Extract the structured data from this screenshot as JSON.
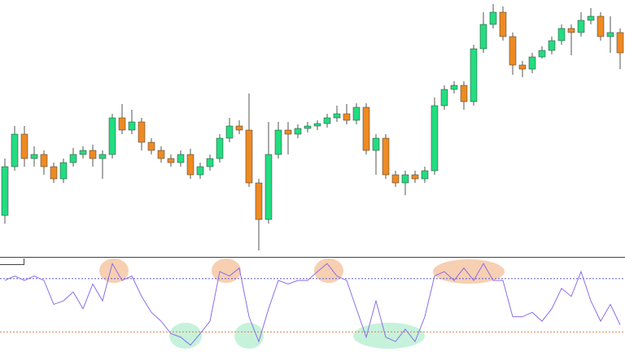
{
  "chart_data": [
    {
      "type": "candlestick",
      "ylim": [
        0,
        315
      ],
      "up_color": "#22dd80",
      "down_color": "#ee8a22",
      "wick_color": "#555555",
      "open": [
        50,
        110,
        150,
        120,
        125,
        110,
        95,
        115,
        125,
        130,
        120,
        125,
        170,
        155,
        165,
        140,
        130,
        120,
        115,
        125,
        100,
        110,
        120,
        145,
        160,
        155,
        90,
        45,
        125,
        155,
        150,
        157,
        160,
        163,
        170,
        175,
        167,
        183,
        130,
        145,
        100,
        90,
        100,
        95,
        105,
        185,
        205,
        210,
        190,
        255,
        285,
        300,
        270,
        235,
        230,
        245,
        253,
        265,
        280,
        275,
        290,
        295,
        270,
        275
      ],
      "high": [
        120,
        160,
        160,
        135,
        130,
        115,
        120,
        133,
        135,
        137,
        130,
        175,
        187,
        180,
        170,
        145,
        135,
        125,
        130,
        132,
        115,
        125,
        150,
        170,
        167,
        200,
        95,
        165,
        165,
        165,
        162,
        165,
        167,
        175,
        185,
        187,
        188,
        188,
        150,
        150,
        105,
        105,
        105,
        110,
        195,
        210,
        215,
        215,
        260,
        300,
        310,
        307,
        275,
        240,
        250,
        258,
        270,
        285,
        285,
        300,
        305,
        300,
        295,
        280
      ],
      "low": [
        40,
        105,
        110,
        110,
        100,
        90,
        90,
        110,
        120,
        110,
        95,
        120,
        150,
        150,
        130,
        125,
        115,
        110,
        110,
        95,
        95,
        105,
        115,
        140,
        150,
        85,
        7,
        40,
        120,
        125,
        145,
        152,
        155,
        158,
        165,
        162,
        162,
        125,
        100,
        95,
        85,
        75,
        90,
        90,
        100,
        180,
        200,
        180,
        185,
        250,
        280,
        265,
        223,
        220,
        225,
        243,
        248,
        260,
        247,
        270,
        285,
        265,
        250,
        230
      ],
      "close": [
        110,
        150,
        120,
        125,
        110,
        95,
        115,
        125,
        130,
        120,
        125,
        170,
        155,
        165,
        140,
        130,
        120,
        115,
        125,
        100,
        110,
        120,
        145,
        160,
        155,
        90,
        45,
        125,
        155,
        150,
        157,
        160,
        163,
        170,
        175,
        167,
        183,
        130,
        145,
        100,
        90,
        100,
        95,
        105,
        185,
        205,
        210,
        190,
        255,
        285,
        300,
        270,
        235,
        230,
        245,
        253,
        265,
        280,
        275,
        290,
        295,
        270,
        275,
        250
      ]
    },
    {
      "type": "line",
      "ylim": [
        0,
        100
      ],
      "color": "#8c6ee6",
      "levels": [
        {
          "value": 80,
          "color": "#5b5be6"
        },
        {
          "value": 20,
          "color": "#e07a3c"
        }
      ],
      "values": [
        78,
        83,
        78,
        83,
        78,
        51,
        55,
        65,
        46,
        74,
        55,
        97,
        78,
        83,
        60,
        42,
        32,
        18,
        14,
        5,
        18,
        32,
        88,
        83,
        92,
        37,
        9,
        46,
        78,
        74,
        78,
        78,
        88,
        97,
        83,
        78,
        46,
        14,
        55,
        14,
        9,
        23,
        9,
        37,
        83,
        88,
        78,
        92,
        78,
        97,
        78,
        78,
        37,
        37,
        42,
        32,
        46,
        69,
        60,
        88,
        55,
        32,
        51,
        28
      ]
    }
  ]
}
